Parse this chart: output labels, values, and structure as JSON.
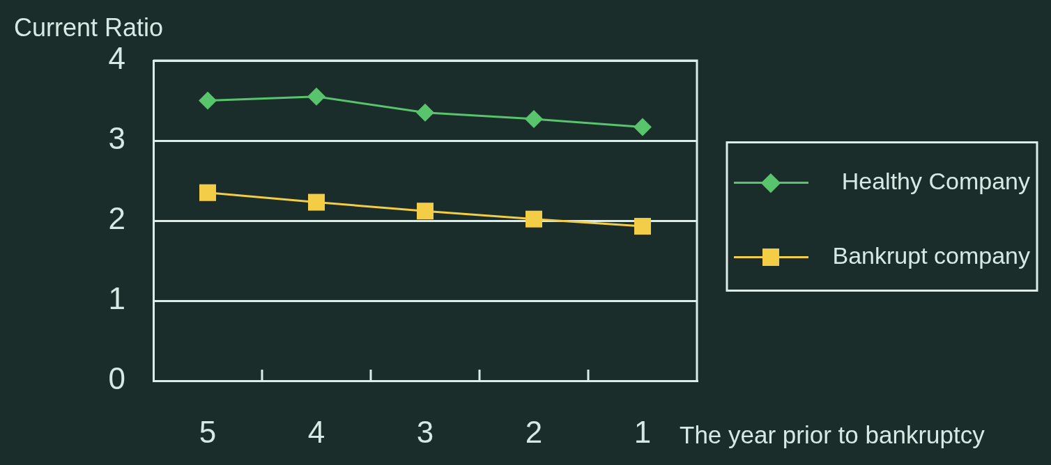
{
  "chart_data": {
    "type": "line",
    "ylabel": "Current Ratio",
    "xlabel": "The year prior to bankruptcy",
    "categories": [
      "5",
      "4",
      "3",
      "2",
      "1"
    ],
    "series": [
      {
        "name": "Healthy Company",
        "color": "#58c46c",
        "marker": "diamond",
        "values": [
          3.5,
          3.55,
          3.35,
          3.27,
          3.17
        ]
      },
      {
        "name": "Bankrupt company",
        "color": "#f2cd45",
        "marker": "square",
        "values": [
          2.35,
          2.23,
          2.12,
          2.02,
          1.93
        ]
      }
    ],
    "ylim": [
      0,
      4
    ],
    "yticks": [
      0,
      1,
      2,
      3,
      4
    ],
    "grid": "y",
    "legend": "right",
    "line_style": "solid"
  }
}
